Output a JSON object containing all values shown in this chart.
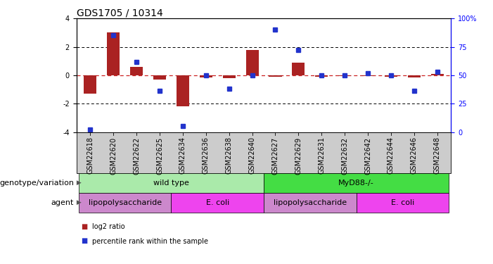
{
  "title": "GDS1705 / 10314",
  "samples": [
    "GSM22618",
    "GSM22620",
    "GSM22622",
    "GSM22625",
    "GSM22634",
    "GSM22636",
    "GSM22638",
    "GSM22640",
    "GSM22627",
    "GSM22629",
    "GSM22631",
    "GSM22632",
    "GSM22642",
    "GSM22644",
    "GSM22646",
    "GSM22648"
  ],
  "log2_ratio": [
    -1.3,
    3.0,
    0.6,
    -0.3,
    -2.2,
    -0.15,
    -0.2,
    1.8,
    -0.1,
    0.9,
    -0.1,
    -0.05,
    -0.05,
    -0.1,
    -0.15,
    0.1
  ],
  "percentile": [
    2,
    85,
    62,
    36,
    5,
    50,
    38,
    50,
    90,
    72,
    50,
    50,
    52,
    50,
    36,
    53
  ],
  "bar_color": "#aa2222",
  "dot_color": "#2233cc",
  "ylim": [
    -4,
    4
  ],
  "y2lim": [
    0,
    100
  ],
  "dotted_lines": [
    2.0,
    -2.0
  ],
  "zero_line_color": "#cc2222",
  "genotype_groups": [
    {
      "label": "wild type",
      "start": 0,
      "end": 8,
      "color": "#aaeaaa"
    },
    {
      "label": "MyD88-/-",
      "start": 8,
      "end": 16,
      "color": "#44dd44"
    }
  ],
  "agent_groups": [
    {
      "label": "lipopolysaccharide",
      "start": 0,
      "end": 4,
      "color": "#cc88cc"
    },
    {
      "label": "E. coli",
      "start": 4,
      "end": 8,
      "color": "#ee44ee"
    },
    {
      "label": "lipopolysaccharide",
      "start": 8,
      "end": 12,
      "color": "#cc88cc"
    },
    {
      "label": "E. coli",
      "start": 12,
      "end": 16,
      "color": "#ee44ee"
    }
  ],
  "legend_log2_label": "log2 ratio",
  "legend_pct_label": "percentile rank within the sample",
  "xlabel_geno": "genotype/variation",
  "xlabel_agent": "agent",
  "tick_fontsize": 7,
  "title_fontsize": 10,
  "annotation_fontsize": 8,
  "sample_bg_color": "#cccccc"
}
